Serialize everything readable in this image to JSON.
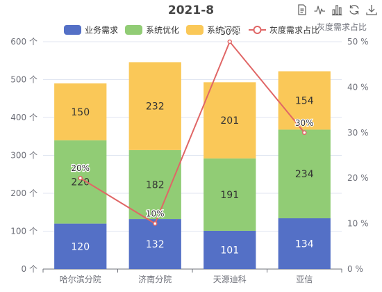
{
  "chart_data": {
    "type": "bar",
    "title": "2021-8",
    "categories": [
      "哈尔滨分院",
      "济南分院",
      "天源迪科",
      "亚信"
    ],
    "series": [
      {
        "name": "业务需求",
        "kind": "bar",
        "stack": "total",
        "color": "#5470c6",
        "values": [
          120,
          132,
          101,
          134
        ]
      },
      {
        "name": "系统优化",
        "kind": "bar",
        "stack": "total",
        "color": "#91cc75",
        "values": [
          220,
          182,
          191,
          234
        ]
      },
      {
        "name": "系统问题",
        "kind": "bar",
        "stack": "total",
        "color": "#fac858",
        "values": [
          150,
          232,
          201,
          154
        ]
      },
      {
        "name": "灰度需求占比",
        "kind": "line",
        "axis": "right",
        "color": "#e06666",
        "values": [
          20,
          10,
          50,
          30
        ],
        "label_suffix": "%"
      }
    ],
    "y_left": {
      "min": 0,
      "max": 600,
      "interval": 100,
      "unit": "个"
    },
    "y_right": {
      "min": 0,
      "max": 50,
      "interval": 10,
      "unit": "%",
      "name": "灰度需求占比"
    },
    "legend_position": "top-center",
    "grid": true
  },
  "toolbox": [
    {
      "name": "data-view-icon",
      "label": "数据视图"
    },
    {
      "name": "line-chart-icon",
      "label": "切换为折线图"
    },
    {
      "name": "bar-chart-icon",
      "label": "切换为柱状图"
    },
    {
      "name": "restore-icon",
      "label": "还原"
    },
    {
      "name": "download-icon",
      "label": "保存为图片"
    }
  ]
}
